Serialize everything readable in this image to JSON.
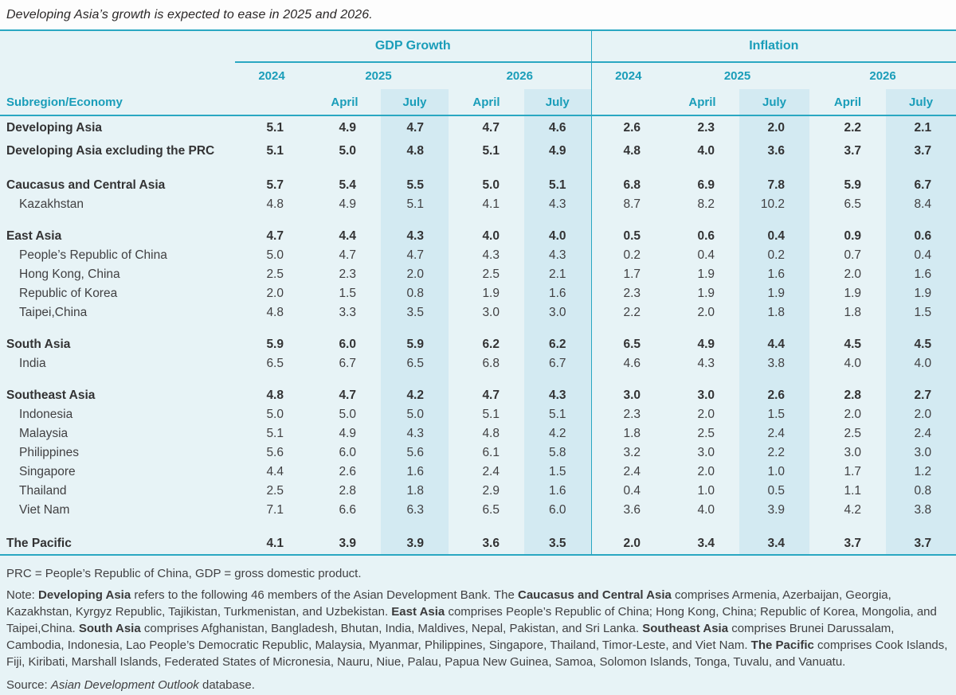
{
  "title": "Developing Asia’s growth is expected to ease in 2025 and 2026.",
  "table": {
    "row_header": "Subregion/Economy",
    "groups": [
      {
        "label": "GDP Growth"
      },
      {
        "label": "Inflation"
      }
    ],
    "years": [
      "2024",
      "2025",
      "2026"
    ],
    "months": [
      "April",
      "July"
    ],
    "rows": [
      {
        "label": "Developing Asia",
        "bold": true,
        "indent": false,
        "section_start": true,
        "values": [
          "5.1",
          "4.9",
          "4.7",
          "4.7",
          "4.6",
          "2.6",
          "2.3",
          "2.0",
          "2.2",
          "2.1"
        ]
      },
      {
        "label": "Developing Asia excluding the PRC",
        "bold": true,
        "indent": false,
        "section_start": false,
        "values": [
          "5.1",
          "5.0",
          "4.8",
          "5.1",
          "4.9",
          "4.8",
          "4.0",
          "3.6",
          "3.7",
          "3.7"
        ]
      },
      {
        "label": "Caucasus and Central Asia",
        "bold": true,
        "indent": false,
        "section_start": true,
        "values": [
          "5.7",
          "5.4",
          "5.5",
          "5.0",
          "5.1",
          "6.8",
          "6.9",
          "7.8",
          "5.9",
          "6.7"
        ]
      },
      {
        "label": "Kazakhstan",
        "bold": false,
        "indent": true,
        "section_start": false,
        "values": [
          "4.8",
          "4.9",
          "5.1",
          "4.1",
          "4.3",
          "8.7",
          "8.2",
          "10.2",
          "6.5",
          "8.4"
        ]
      },
      {
        "label": "East Asia",
        "bold": true,
        "indent": false,
        "section_start": true,
        "values": [
          "4.7",
          "4.4",
          "4.3",
          "4.0",
          "4.0",
          "0.5",
          "0.6",
          "0.4",
          "0.9",
          "0.6"
        ]
      },
      {
        "label": "People’s Republic of China",
        "bold": false,
        "indent": true,
        "section_start": false,
        "values": [
          "5.0",
          "4.7",
          "4.7",
          "4.3",
          "4.3",
          "0.2",
          "0.4",
          "0.2",
          "0.7",
          "0.4"
        ]
      },
      {
        "label": "Hong Kong, China",
        "bold": false,
        "indent": true,
        "section_start": false,
        "values": [
          "2.5",
          "2.3",
          "2.0",
          "2.5",
          "2.1",
          "1.7",
          "1.9",
          "1.6",
          "2.0",
          "1.6"
        ]
      },
      {
        "label": "Republic of Korea",
        "bold": false,
        "indent": true,
        "section_start": false,
        "values": [
          "2.0",
          "1.5",
          "0.8",
          "1.9",
          "1.6",
          "2.3",
          "1.9",
          "1.9",
          "1.9",
          "1.9"
        ]
      },
      {
        "label": "Taipei,China",
        "bold": false,
        "indent": true,
        "section_start": false,
        "values": [
          "4.8",
          "3.3",
          "3.5",
          "3.0",
          "3.0",
          "2.2",
          "2.0",
          "1.8",
          "1.8",
          "1.5"
        ]
      },
      {
        "label": "South Asia",
        "bold": true,
        "indent": false,
        "section_start": true,
        "values": [
          "5.9",
          "6.0",
          "5.9",
          "6.2",
          "6.2",
          "6.5",
          "4.9",
          "4.4",
          "4.5",
          "4.5"
        ]
      },
      {
        "label": "India",
        "bold": false,
        "indent": true,
        "section_start": false,
        "values": [
          "6.5",
          "6.7",
          "6.5",
          "6.8",
          "6.7",
          "4.6",
          "4.3",
          "3.8",
          "4.0",
          "4.0"
        ]
      },
      {
        "label": "Southeast Asia",
        "bold": true,
        "indent": false,
        "section_start": true,
        "values": [
          "4.8",
          "4.7",
          "4.2",
          "4.7",
          "4.3",
          "3.0",
          "3.0",
          "2.6",
          "2.8",
          "2.7"
        ]
      },
      {
        "label": "Indonesia",
        "bold": false,
        "indent": true,
        "section_start": false,
        "values": [
          "5.0",
          "5.0",
          "5.0",
          "5.1",
          "5.1",
          "2.3",
          "2.0",
          "1.5",
          "2.0",
          "2.0"
        ]
      },
      {
        "label": "Malaysia",
        "bold": false,
        "indent": true,
        "section_start": false,
        "values": [
          "5.1",
          "4.9",
          "4.3",
          "4.8",
          "4.2",
          "1.8",
          "2.5",
          "2.4",
          "2.5",
          "2.4"
        ]
      },
      {
        "label": "Philippines",
        "bold": false,
        "indent": true,
        "section_start": false,
        "values": [
          "5.6",
          "6.0",
          "5.6",
          "6.1",
          "5.8",
          "3.2",
          "3.0",
          "2.2",
          "3.0",
          "3.0"
        ]
      },
      {
        "label": "Singapore",
        "bold": false,
        "indent": true,
        "section_start": false,
        "values": [
          "4.4",
          "2.6",
          "1.6",
          "2.4",
          "1.5",
          "2.4",
          "2.0",
          "1.0",
          "1.7",
          "1.2"
        ]
      },
      {
        "label": "Thailand",
        "bold": false,
        "indent": true,
        "section_start": false,
        "values": [
          "2.5",
          "2.8",
          "1.8",
          "2.9",
          "1.6",
          "0.4",
          "1.0",
          "0.5",
          "1.1",
          "0.8"
        ]
      },
      {
        "label": "Viet Nam",
        "bold": false,
        "indent": true,
        "section_start": false,
        "values": [
          "7.1",
          "6.6",
          "6.3",
          "6.5",
          "6.0",
          "3.6",
          "4.0",
          "3.9",
          "4.2",
          "3.8"
        ]
      },
      {
        "label": "The Pacific",
        "bold": true,
        "indent": false,
        "section_start": true,
        "values": [
          "4.1",
          "3.9",
          "3.9",
          "3.6",
          "3.5",
          "2.0",
          "3.4",
          "3.4",
          "3.7",
          "3.7"
        ]
      }
    ]
  },
  "footer": {
    "abbreviations": "PRC = People’s Republic of China, GDP = gross domestic product.",
    "note_segments": [
      {
        "text": "Note: ",
        "bold": false
      },
      {
        "text": "Developing Asia",
        "bold": true
      },
      {
        "text": " refers to the following 46 members of the Asian Development Bank. The ",
        "bold": false
      },
      {
        "text": "Caucasus and Central Asia",
        "bold": true
      },
      {
        "text": " comprises Armenia, Azerbaijan, Georgia, Kazakhstan, Kyrgyz Republic, Tajikistan, Turkmenistan, and Uzbekistan. ",
        "bold": false
      },
      {
        "text": "East Asia",
        "bold": true
      },
      {
        "text": " comprises People’s Republic of China; Hong Kong, China; Republic of Korea, Mongolia, and Taipei,China. ",
        "bold": false
      },
      {
        "text": "South Asia",
        "bold": true
      },
      {
        "text": " comprises Afghanistan, Bangladesh, Bhutan, India, Maldives, Nepal, Pakistan, and Sri Lanka. ",
        "bold": false
      },
      {
        "text": "Southeast Asia",
        "bold": true
      },
      {
        "text": " comprises Brunei Darussalam, Cambodia, Indonesia, Lao People’s Democratic Republic, Malaysia, Myanmar, Philippines, Singapore, Thailand, Timor-Leste, and Viet Nam. ",
        "bold": false
      },
      {
        "text": "The Pacific",
        "bold": true
      },
      {
        "text": " comprises Cook Islands, Fiji, Kiribati, Marshall Islands, Federated States of Micronesia, Nauru, Niue, Palau, Papua New Guinea, Samoa, Solomon Islands, Tonga, Tuvalu, and Vanuatu.",
        "bold": false
      }
    ],
    "source_segments": [
      {
        "text": "Source: ",
        "italic": false
      },
      {
        "text": "Asian Development Outlook",
        "italic": true
      },
      {
        "text": " database.",
        "italic": false
      }
    ]
  },
  "colors": {
    "accent_teal": "#1a9db9",
    "line_teal": "#2aa7c2",
    "background_light": "#e7f3f6",
    "highlight_column": "#d3eaf2",
    "text_dark": "#414042"
  }
}
